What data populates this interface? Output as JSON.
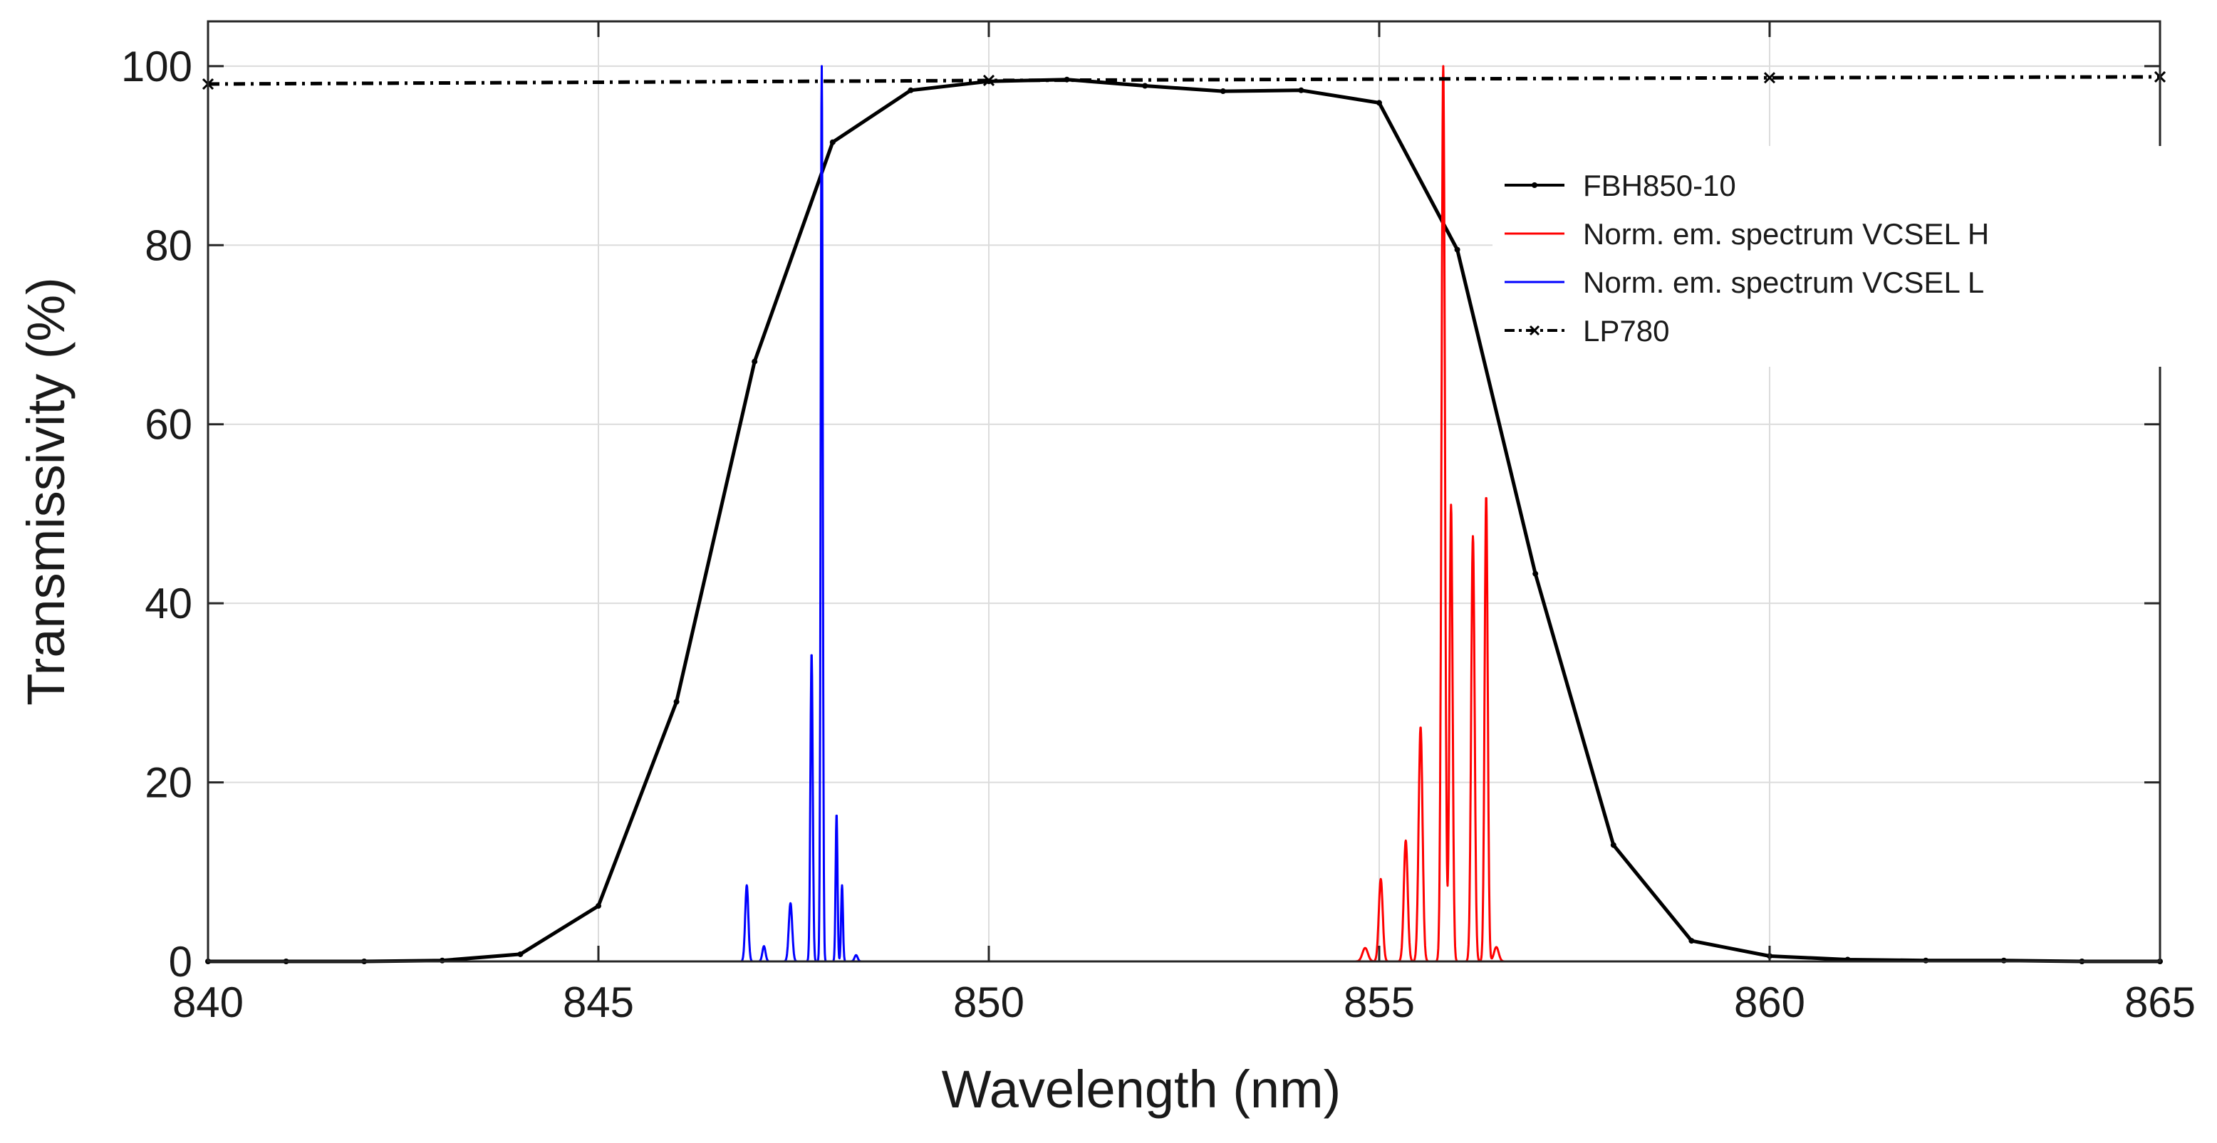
{
  "chart_data": {
    "type": "line",
    "title": "",
    "xlabel": "Wavelength (nm)",
    "ylabel": "Transmissivity (%)",
    "xlim": [
      840,
      865
    ],
    "ylim": [
      0,
      105
    ],
    "grid": true,
    "legend_position": "top-right",
    "xticks": [
      840,
      845,
      850,
      855,
      860,
      865
    ],
    "yticks": [
      0,
      20,
      40,
      60,
      80,
      100
    ],
    "xtick_labels": [
      "840",
      "845",
      "850",
      "855",
      "860",
      "865"
    ],
    "ytick_labels": [
      "0",
      "20",
      "40",
      "60",
      "80",
      "100"
    ],
    "series": [
      {
        "name": "FBH850-10",
        "color": "#000000",
        "style": "solid-dot-markers",
        "x": [
          840,
          841,
          842,
          843,
          844,
          845,
          846,
          847,
          848,
          849,
          850,
          851,
          852,
          853,
          854,
          855,
          856,
          857,
          858,
          859,
          860,
          861,
          862,
          863,
          864,
          865
        ],
        "y": [
          0.0,
          0.0,
          0.0,
          0.1,
          0.8,
          6.2,
          29,
          67,
          91.5,
          97.3,
          98.3,
          98.5,
          97.8,
          97.2,
          97.3,
          95.9,
          79.5,
          43.3,
          13.0,
          2.3,
          0.6,
          0.2,
          0.1,
          0.1,
          0.0,
          0.0
        ]
      },
      {
        "name": "Norm. em. spectrum VCSEL H",
        "color": "#ff0000",
        "style": "solid",
        "range": [
          852,
          857
        ],
        "peaks": [
          {
            "x": 854.82,
            "y": 1.5,
            "w": 0.035
          },
          {
            "x": 855.02,
            "y": 9.2,
            "w": 0.025
          },
          {
            "x": 855.34,
            "y": 13.5,
            "w": 0.025
          },
          {
            "x": 855.53,
            "y": 26.2,
            "w": 0.025
          },
          {
            "x": 855.82,
            "y": 100,
            "w": 0.022
          },
          {
            "x": 855.92,
            "y": 51,
            "w": 0.02
          },
          {
            "x": 856.2,
            "y": 47.5,
            "w": 0.022
          },
          {
            "x": 856.37,
            "y": 52,
            "w": 0.02
          },
          {
            "x": 856.5,
            "y": 1.6,
            "w": 0.03
          }
        ]
      },
      {
        "name": "Norm. em. spectrum VCSEL L",
        "color": "#0000ff",
        "style": "solid",
        "range": [
          845,
          850
        ],
        "peaks": [
          {
            "x": 846.9,
            "y": 8.5,
            "w": 0.02
          },
          {
            "x": 847.12,
            "y": 1.7,
            "w": 0.02
          },
          {
            "x": 847.46,
            "y": 6.5,
            "w": 0.022
          },
          {
            "x": 847.73,
            "y": 34.5,
            "w": 0.015
          },
          {
            "x": 847.86,
            "y": 100,
            "w": 0.013
          },
          {
            "x": 848.05,
            "y": 16.5,
            "w": 0.012
          },
          {
            "x": 848.12,
            "y": 8.5,
            "w": 0.012
          },
          {
            "x": 848.3,
            "y": 0.7,
            "w": 0.02
          }
        ]
      },
      {
        "name": "LP780",
        "color": "#000000",
        "style": "dash-dot-x-markers",
        "x": [
          840,
          850,
          860,
          865
        ],
        "y": [
          98.0,
          98.4,
          98.7,
          98.8
        ]
      }
    ]
  }
}
